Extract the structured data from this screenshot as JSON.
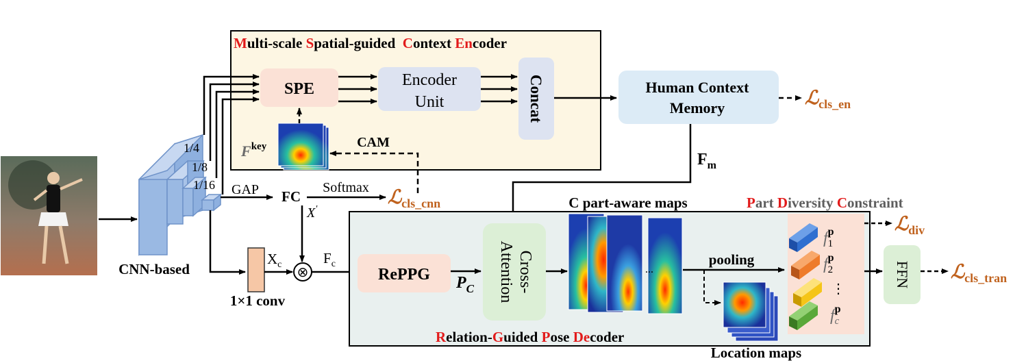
{
  "encoder": {
    "title_parts": [
      {
        "text": "M",
        "color": "red"
      },
      {
        "text": "ulti-scale ",
        "color": "black"
      },
      {
        "text": "S",
        "color": "red"
      },
      {
        "text": "patial-guided  ",
        "color": "black"
      },
      {
        "text": "C",
        "color": "red"
      },
      {
        "text": "ontext ",
        "color": "black"
      },
      {
        "text": "En",
        "color": "red"
      },
      {
        "text": "coder",
        "color": "black"
      }
    ],
    "spe": "SPE",
    "encoder_unit_line1": "Encoder",
    "encoder_unit_line2": "Unit",
    "concat": "Concat",
    "fkey_base": "F",
    "fkey_sup": "key",
    "cam": "CAM"
  },
  "memory": {
    "line1": "Human Context",
    "line2": "Memory"
  },
  "losses": {
    "symbol": "ℒ",
    "cls_en": "cls_en",
    "cls_cnn": "cls_cnn",
    "div": "div",
    "cls_tran": "cls_tran"
  },
  "fm": {
    "base": "F",
    "sub": "m"
  },
  "backbone": {
    "scale_1_4": "1/4",
    "scale_1_8": "1/8",
    "scale_1_16": "1/16",
    "label": "CNN-based",
    "gap": "GAP",
    "fc": "FC",
    "softmax": "Softmax",
    "xprime_base": "X",
    "xprime_mark": "′"
  },
  "conv": {
    "label": "1×1 conv",
    "xc_base": "X",
    "xc_sub": "c",
    "fc_base": "F",
    "fc_sub": "c",
    "otimes": "⊗"
  },
  "decoder": {
    "reppg": "RePPG",
    "pc_base": "P",
    "pc_sub": "C",
    "cross_line1": "Cross-",
    "cross_line2": "Attention",
    "parts_title": "C part-aware maps",
    "pooling": "pooling",
    "location_maps": "Location maps",
    "title_parts": [
      {
        "text": "R",
        "color": "red"
      },
      {
        "text": "elation-",
        "color": "black"
      },
      {
        "text": "G",
        "color": "red"
      },
      {
        "text": "uided ",
        "color": "black"
      },
      {
        "text": "P",
        "color": "red"
      },
      {
        "text": "ose ",
        "color": "black"
      },
      {
        "text": "De",
        "color": "red"
      },
      {
        "text": "coder",
        "color": "black"
      }
    ],
    "dots": "..."
  },
  "diversity": {
    "title_parts": [
      {
        "text": "P",
        "color": "red"
      },
      {
        "text": "art ",
        "color": "gray"
      },
      {
        "text": "D",
        "color": "red"
      },
      {
        "text": "iversity ",
        "color": "gray"
      },
      {
        "text": "C",
        "color": "red"
      },
      {
        "text": "onstraint",
        "color": "gray"
      }
    ],
    "f_base": "f",
    "f_sup": "p",
    "f1_sub": "1",
    "f2_sub": "2",
    "fc_sub": "c",
    "vdots": "⋮",
    "ffn": "FFN"
  },
  "colors": {
    "red": "#e21b1b",
    "orange_loss": "#c0621e",
    "encoder_bg": "#fdf6e3",
    "decoder_bg": "#e9f0ef",
    "spe_fill": "#fbe1d6",
    "unit_fill": "#dde3f1",
    "memory_fill": "#dcebf6",
    "ffn_fill": "#dcefd6",
    "cnn_blue": "#8eb0df",
    "part_blue": "#2f6fd0",
    "part_orange": "#ee7b2a",
    "part_yellow": "#f5c518",
    "part_green": "#5aa83a"
  }
}
